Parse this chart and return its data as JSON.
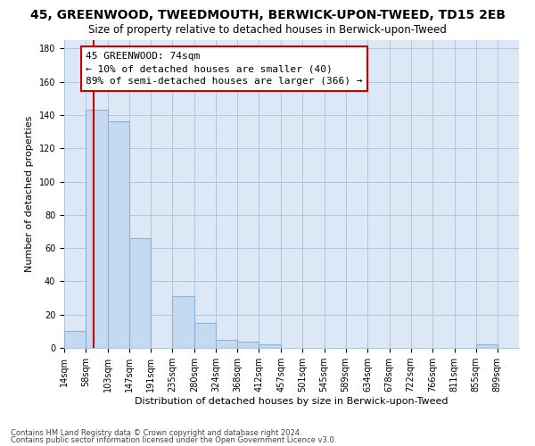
{
  "title": "45, GREENWOOD, TWEEDMOUTH, BERWICK-UPON-TWEED, TD15 2EB",
  "subtitle": "Size of property relative to detached houses in Berwick-upon-Tweed",
  "xlabel": "Distribution of detached houses by size in Berwick-upon-Tweed",
  "ylabel": "Number of detached properties",
  "footer_line1": "Contains HM Land Registry data © Crown copyright and database right 2024.",
  "footer_line2": "Contains public sector information licensed under the Open Government Licence v3.0.",
  "annotation_title": "45 GREENWOOD: 74sqm",
  "annotation_line1": "← 10% of detached houses are smaller (40)",
  "annotation_line2": "89% of semi-detached houses are larger (366) →",
  "bar_labels": [
    "14sqm",
    "58sqm",
    "103sqm",
    "147sqm",
    "191sqm",
    "235sqm",
    "280sqm",
    "324sqm",
    "368sqm",
    "412sqm",
    "457sqm",
    "501sqm",
    "545sqm",
    "589sqm",
    "634sqm",
    "678sqm",
    "722sqm",
    "766sqm",
    "811sqm",
    "855sqm",
    "899sqm"
  ],
  "bar_values": [
    10,
    143,
    136,
    66,
    0,
    31,
    15,
    5,
    4,
    2,
    0,
    0,
    0,
    0,
    0,
    0,
    0,
    0,
    0,
    2,
    0
  ],
  "bin_edges": [
    14,
    58,
    103,
    147,
    191,
    235,
    280,
    324,
    368,
    412,
    457,
    501,
    545,
    589,
    634,
    678,
    722,
    766,
    811,
    855,
    899,
    943
  ],
  "bar_color": "#c5d9f0",
  "bar_edgecolor": "#8cb4d9",
  "vline_x": 74,
  "vline_color": "#cc0000",
  "ylim_max": 185,
  "yticks": [
    0,
    20,
    40,
    60,
    80,
    100,
    120,
    140,
    160,
    180
  ],
  "bg_color": "#ffffff",
  "plot_bg_color": "#dce8f5",
  "grid_color": "#b0c4de",
  "ann_box_edgecolor": "#cc0000",
  "title_fontsize": 10,
  "subtitle_fontsize": 8.5,
  "tick_fontsize": 7,
  "label_fontsize": 8,
  "ann_fontsize": 8,
  "footer_fontsize": 6
}
